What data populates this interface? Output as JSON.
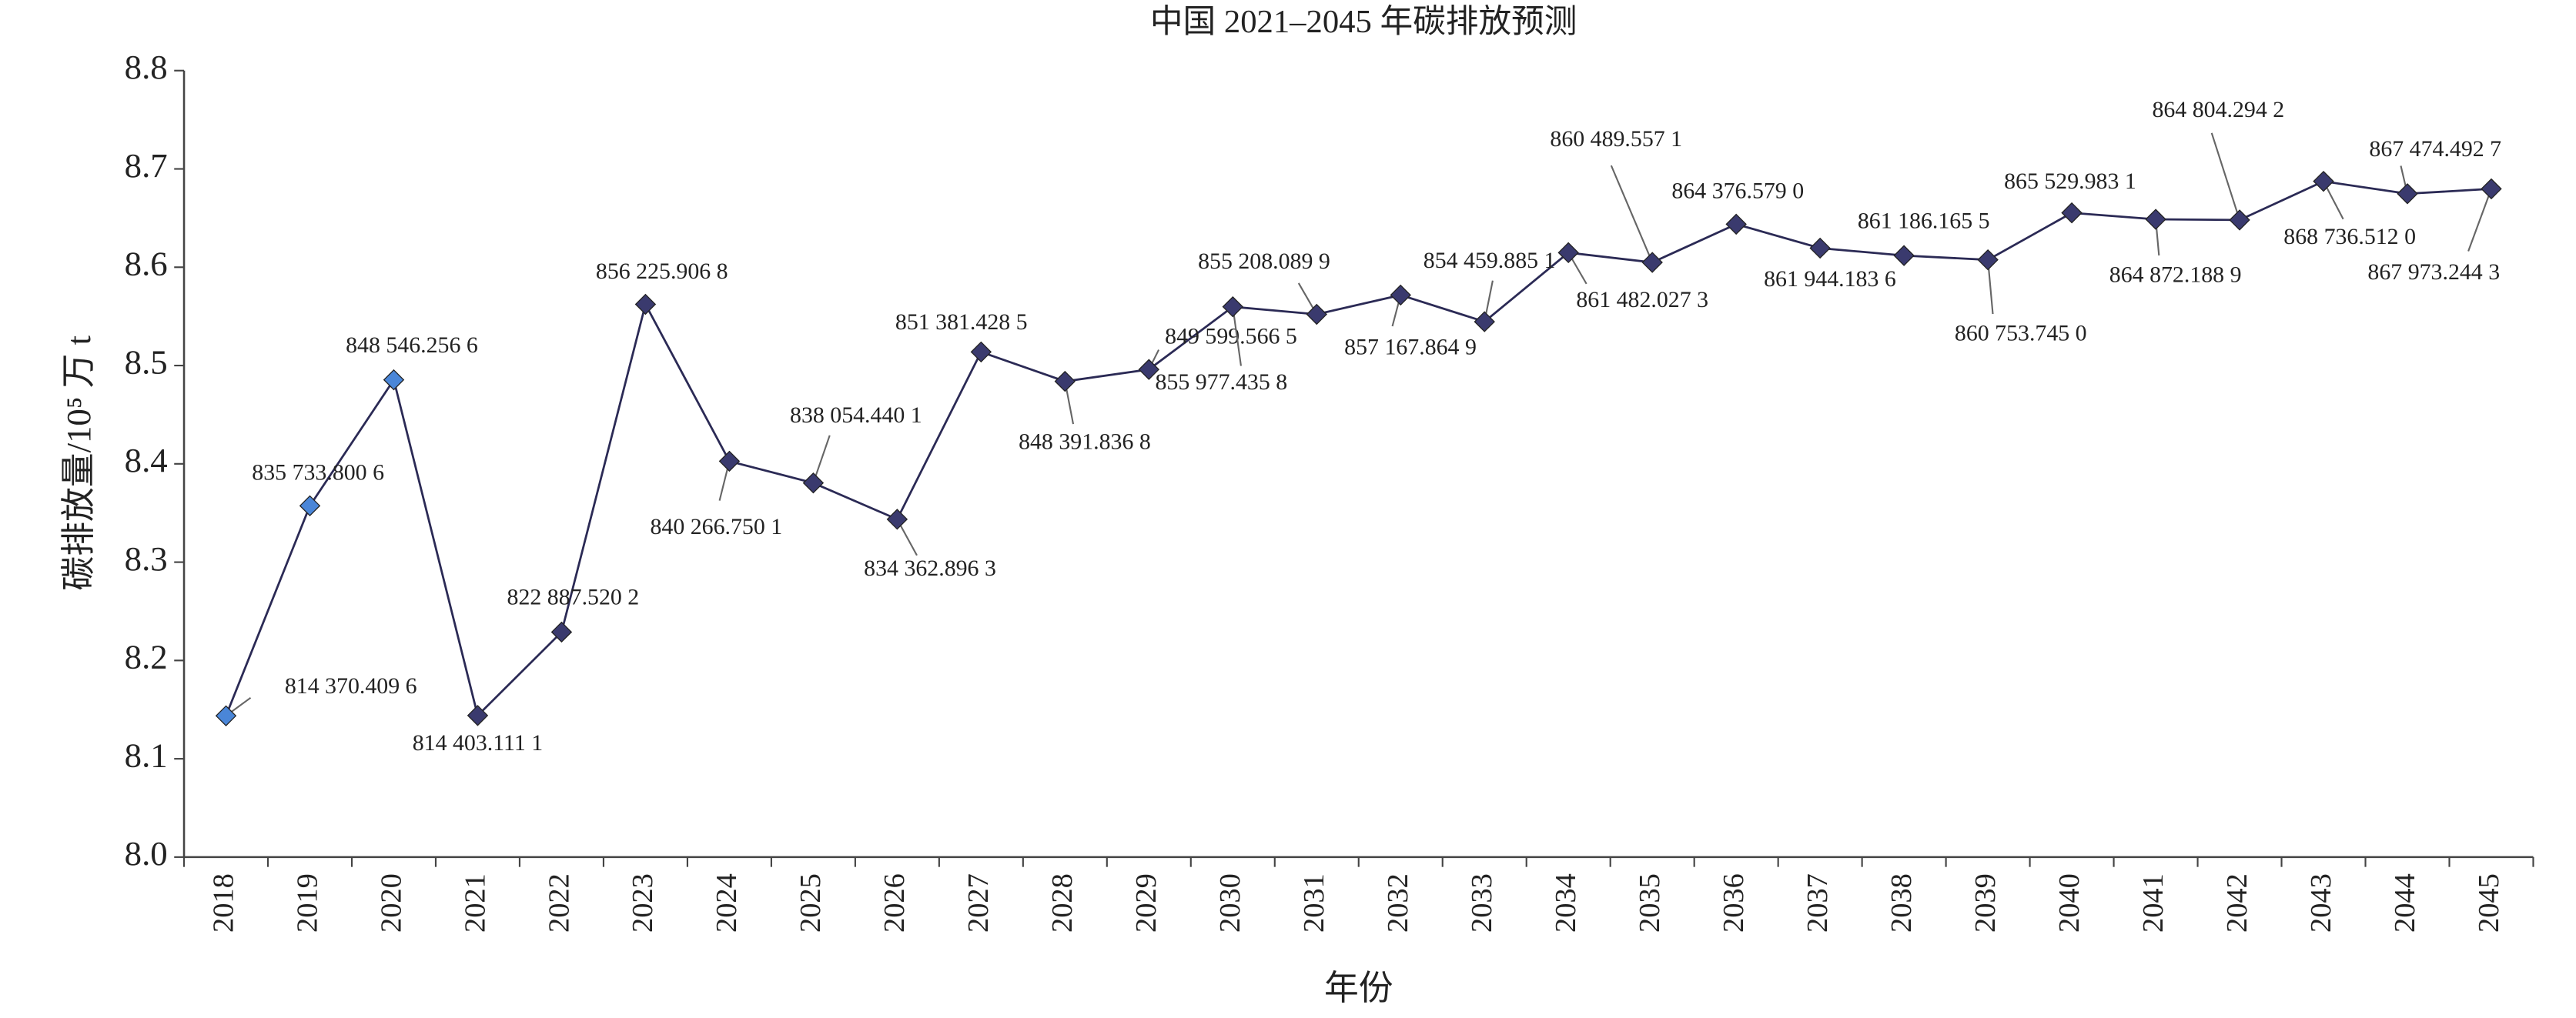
{
  "chart_data": {
    "type": "line",
    "title": "中国 2021–2045 年碳排放预测",
    "x_label": "年份",
    "y_label": "碳排放量/10⁵ 万 t",
    "categories": [
      "2018",
      "2019",
      "2020",
      "2021",
      "2022",
      "2023",
      "2024",
      "2025",
      "2026",
      "2027",
      "2028",
      "2029",
      "2030",
      "2031",
      "2032",
      "2033",
      "2034",
      "2035",
      "2036",
      "2037",
      "2038",
      "2039",
      "2040",
      "2041",
      "2042",
      "2043",
      "2044",
      "2045"
    ],
    "series": [
      {
        "color": "#2b2a55",
        "marker_colors": [
          "#4a86d8",
          "#4a86d8",
          "#4a86d8",
          "#3a3a6e",
          "#3a3a6e",
          "#3a3a6e",
          "#3a3a6e",
          "#3a3a6e",
          "#3a3a6e",
          "#3a3a6e",
          "#3a3a6e",
          "#3a3a6e",
          "#3a3a6e",
          "#3a3a6e",
          "#3a3a6e",
          "#3a3a6e",
          "#3a3a6e",
          "#3a3a6e",
          "#3a3a6e",
          "#3a3a6e",
          "#3a3a6e",
          "#3a3a6e",
          "#3a3a6e",
          "#3a3a6e",
          "#3a3a6e",
          "#3a3a6e",
          "#3a3a6e",
          "#3a3a6e"
        ],
        "values": [
          8.143704096,
          8.357338006,
          8.485462566,
          8.144031111,
          8.228875202,
          8.562259068,
          8.402667501,
          8.380544401,
          8.343628963,
          8.513814285,
          8.483918368,
          8.495995665,
          8.559774358,
          8.552080899,
          8.571678649,
          8.544598851,
          8.614820273,
          8.604895571,
          8.64376579,
          8.619441836,
          8.611861655,
          8.60753745,
          8.655299831,
          8.648721889,
          8.648042942,
          8.68736512,
          8.674744927,
          8.679732443
        ],
        "value_labels": [
          "814 370.409 6",
          "835 733.800 6",
          "848 546.256 6",
          "814 403.111 1",
          "822 887.520 2",
          "856 225.906 8",
          "840 266.750 1",
          "838 054.440 1",
          "834 362.896 3",
          "851 381.428 5",
          "848 391.836 8",
          "849 599.566 5",
          "855 977.435 8",
          "855 208.089 9",
          "857 167.864 9",
          "854 459.885 1",
          "861 482.027 3",
          "860 489.557 1",
          "864 376.579 0",
          "861 944.183 6",
          "861 186.165 5",
          "860 753.745 0",
          "865 529.983 1",
          "864 872.188 9",
          "864 804.294 2",
          "868 736.512 0",
          "867 474.492 7",
          "867 973.244 3"
        ]
      }
    ],
    "ylim": [
      8.0,
      8.8
    ],
    "yticks": [
      {
        "value": 8,
        "label": "8.0"
      },
      8.1,
      8.2,
      8.3,
      8.4,
      8.5,
      8.6,
      8.7,
      8.8
    ]
  }
}
